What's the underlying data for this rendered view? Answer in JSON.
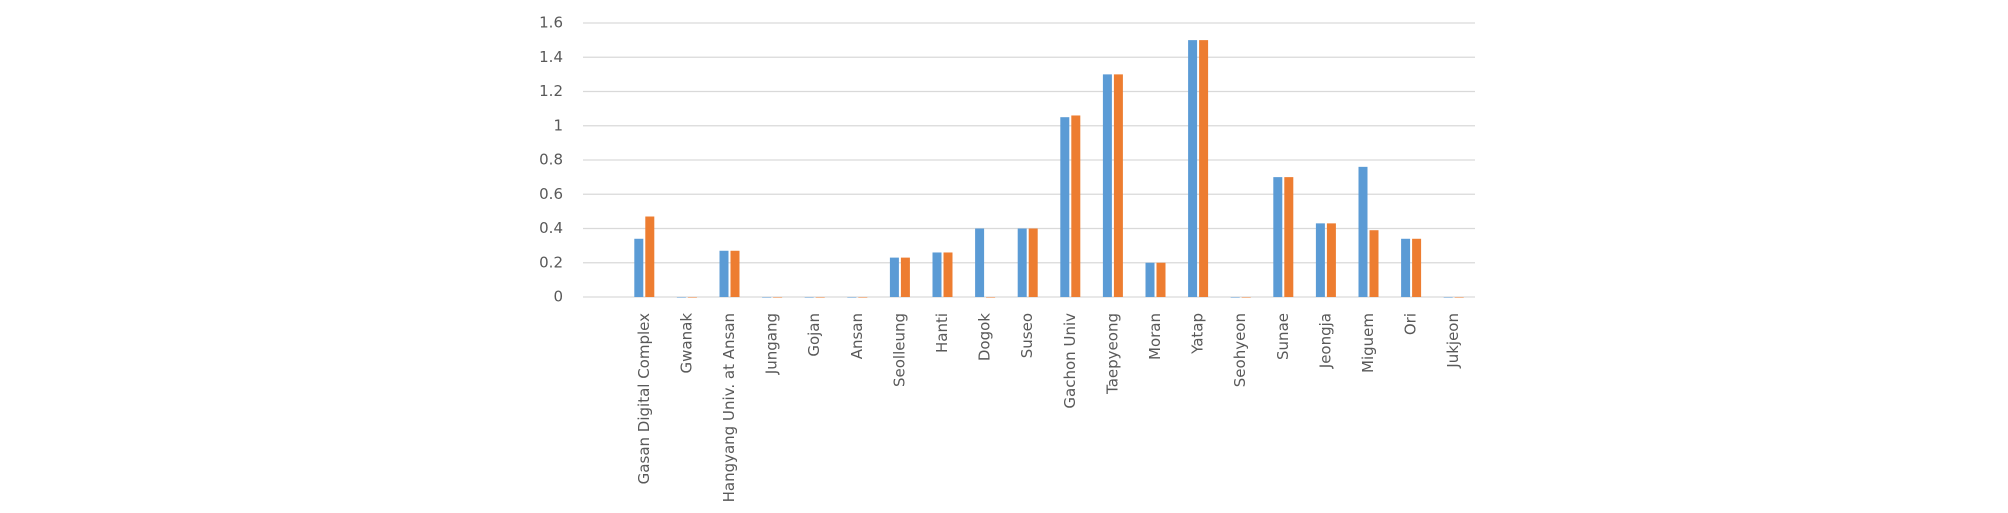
{
  "chart_data": {
    "type": "bar",
    "categories": [
      "Gasan Digital Complex",
      "Gwanak",
      "Hangyang Univ. at Ansan",
      "Jungang",
      "Gojan",
      "Ansan",
      "Seolleung",
      "Hanti",
      "Dogok",
      "Suseo",
      "Gachon Univ",
      "Taepyeong",
      "Moran",
      "Yatap",
      "Seohyeon",
      "Sunae",
      "Jeongja",
      "Miguem",
      "Ori",
      "Jukjeon"
    ],
    "series": [
      {
        "color": "#5b9bd5",
        "values": [
          0.34,
          0,
          0.27,
          0,
          0,
          0,
          0.23,
          0.26,
          0.4,
          0.4,
          1.05,
          1.3,
          0.2,
          1.5,
          0,
          0.7,
          0.43,
          0.76,
          0.34,
          0
        ]
      },
      {
        "color": "#ed7d31",
        "values": [
          0.47,
          0,
          0.27,
          0,
          0,
          0,
          0.23,
          0.26,
          0,
          0.4,
          1.06,
          1.3,
          0.2,
          1.5,
          0,
          0.7,
          0.43,
          0.39,
          0.34,
          0
        ]
      }
    ],
    "ylim": [
      0,
      1.6
    ],
    "yticks": [
      0,
      0.2,
      0.4,
      0.6,
      0.8,
      1,
      1.2,
      1.4,
      1.6
    ],
    "grid": true
  }
}
